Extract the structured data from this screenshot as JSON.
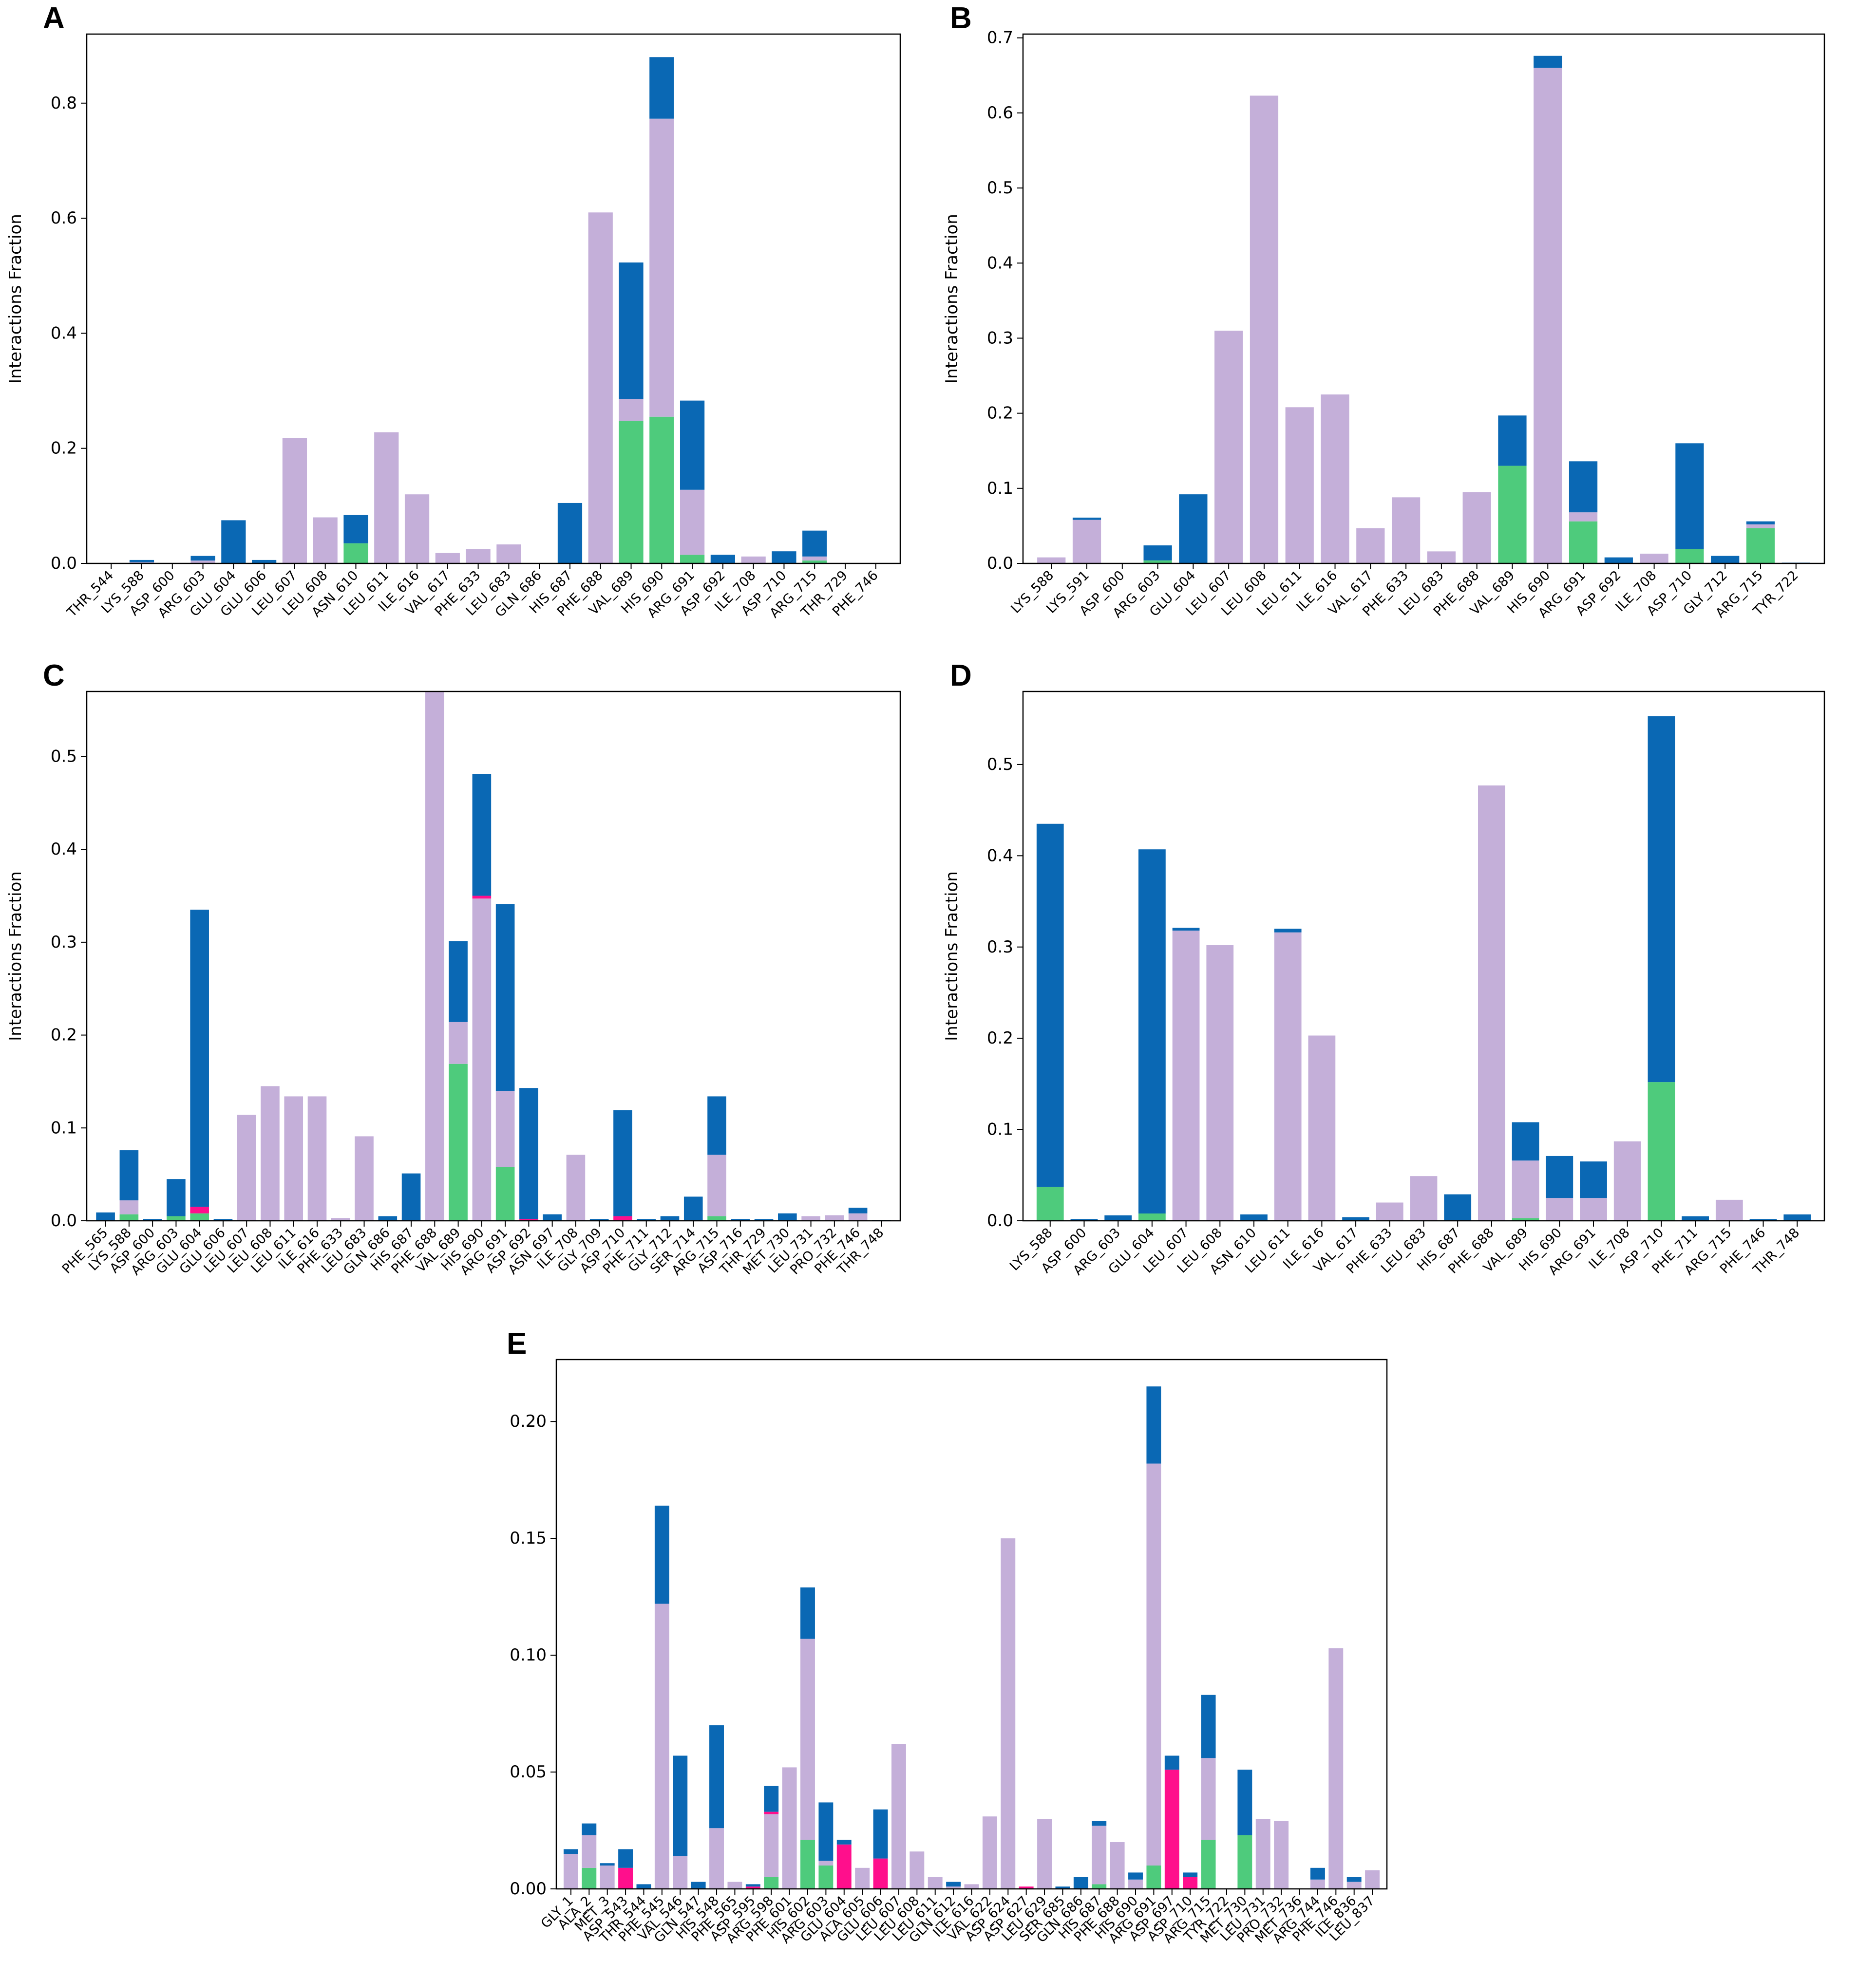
{
  "figure": {
    "series_colors": {
      "hbond": "#4ecb7c",
      "hydrophobic": "#c4afd9",
      "ionic": "#ff0f8c",
      "water_bridge": "#0a68b4"
    },
    "stack_order": [
      "hbond",
      "hydrophobic",
      "ionic",
      "water_bridge"
    ]
  },
  "chart_data": [
    {
      "panel": "A",
      "type": "bar",
      "stacked": true,
      "ylabel": "Interactions Fraction",
      "xlabel": "",
      "ylim": [
        0,
        0.92
      ],
      "yticks": [
        0.0,
        0.2,
        0.4,
        0.6,
        0.8
      ],
      "ytick_labels": [
        "0.0",
        "0.2",
        "0.4",
        "0.6",
        "0.8"
      ],
      "categories": [
        "THR_544",
        "LYS_588",
        "ASP_600",
        "ARG_603",
        "GLU_604",
        "GLU_606",
        "LEU_607",
        "LEU_608",
        "ASN_610",
        "LEU_611",
        "ILE_616",
        "VAL_617",
        "PHE_633",
        "LEU_683",
        "GLN_686",
        "HIS_687",
        "PHE_688",
        "VAL_689",
        "HIS_690",
        "ARG_691",
        "ASP_692",
        "ILE_708",
        "ASP_710",
        "ARG_715",
        "THR_729",
        "PHE_746"
      ],
      "series": [
        {
          "key": "hbond",
          "values": [
            0,
            0,
            0,
            0,
            0,
            0,
            0,
            0,
            0.035,
            0,
            0,
            0,
            0,
            0,
            0,
            0,
            0,
            0.248,
            0.255,
            0.015,
            0,
            0,
            0,
            0.005,
            0,
            0
          ]
        },
        {
          "key": "hydrophobic",
          "values": [
            0,
            0.002,
            0,
            0.005,
            0,
            0,
            0.218,
            0.08,
            0,
            0.228,
            0.12,
            0.018,
            0.025,
            0.033,
            0,
            0,
            0.61,
            0.038,
            0.518,
            0.113,
            0,
            0.012,
            0,
            0.007,
            0,
            0
          ]
        },
        {
          "key": "ionic",
          "values": [
            0,
            0,
            0,
            0,
            0,
            0,
            0,
            0,
            0,
            0,
            0,
            0,
            0,
            0,
            0,
            0,
            0,
            0,
            0,
            0,
            0,
            0,
            0,
            0,
            0,
            0
          ]
        },
        {
          "key": "water_bridge",
          "values": [
            0,
            0.004,
            0,
            0.008,
            0.075,
            0.006,
            0,
            0,
            0.049,
            0,
            0,
            0,
            0,
            0,
            0,
            0.105,
            0,
            0.237,
            0.107,
            0.155,
            0.015,
            0,
            0.021,
            0.045,
            0,
            0
          ]
        }
      ]
    },
    {
      "panel": "B",
      "type": "bar",
      "stacked": true,
      "ylabel": "Interactions Fraction",
      "xlabel": "",
      "ylim": [
        0,
        0.705
      ],
      "yticks": [
        0.0,
        0.1,
        0.2,
        0.3,
        0.4,
        0.5,
        0.6,
        0.7
      ],
      "ytick_labels": [
        "0.0",
        "0.1",
        "0.2",
        "0.3",
        "0.4",
        "0.5",
        "0.6",
        "0.7"
      ],
      "categories": [
        "LYS_588",
        "LYS_591",
        "ASP_600",
        "ARG_603",
        "GLU_604",
        "LEU_607",
        "LEU_608",
        "LEU_611",
        "ILE_616",
        "VAL_617",
        "PHE_633",
        "LEU_683",
        "PHE_688",
        "VAL_689",
        "HIS_690",
        "ARG_691",
        "ASP_692",
        "ILE_708",
        "ASP_710",
        "GLY_712",
        "ARG_715",
        "TYR_722"
      ],
      "series": [
        {
          "key": "hbond",
          "values": [
            0,
            0,
            0,
            0.004,
            0,
            0,
            0,
            0,
            0,
            0,
            0,
            0,
            0,
            0.13,
            0,
            0.056,
            0,
            0,
            0.019,
            0,
            0.047,
            0
          ]
        },
        {
          "key": "hydrophobic",
          "values": [
            0.008,
            0.058,
            0,
            0,
            0,
            0.31,
            0.623,
            0.208,
            0.225,
            0.047,
            0.088,
            0.016,
            0.095,
            0,
            0.66,
            0.012,
            0,
            0.013,
            0,
            0,
            0.005,
            0
          ]
        },
        {
          "key": "ionic",
          "values": [
            0,
            0,
            0,
            0,
            0,
            0,
            0,
            0,
            0,
            0,
            0,
            0,
            0,
            0,
            0,
            0,
            0,
            0,
            0,
            0,
            0,
            0
          ]
        },
        {
          "key": "water_bridge",
          "values": [
            0,
            0.003,
            0,
            0.02,
            0.092,
            0,
            0,
            0,
            0,
            0,
            0,
            0,
            0,
            0.067,
            0.016,
            0.068,
            0.008,
            0,
            0.141,
            0.01,
            0.004,
            0.001
          ]
        }
      ]
    },
    {
      "panel": "C",
      "type": "bar",
      "stacked": true,
      "ylabel": "Interactions Fraction",
      "xlabel": "",
      "ylim": [
        0,
        0.57
      ],
      "yticks": [
        0.0,
        0.1,
        0.2,
        0.3,
        0.4,
        0.5
      ],
      "ytick_labels": [
        "0.0",
        "0.1",
        "0.2",
        "0.3",
        "0.4",
        "0.5"
      ],
      "categories": [
        "PHE_565",
        "LYS_588",
        "ASP_600",
        "ARG_603",
        "GLU_604",
        "GLU_606",
        "LEU_607",
        "LEU_608",
        "LEU_611",
        "ILE_616",
        "PHE_633",
        "LEU_683",
        "GLN_686",
        "HIS_687",
        "PHE_688",
        "VAL_689",
        "HIS_690",
        "ARG_691",
        "ASP_692",
        "ASN_697",
        "ILE_708",
        "GLY_709",
        "ASP_710",
        "PHE_711",
        "GLY_712",
        "SER_714",
        "ARG_715",
        "ASP_716",
        "THR_729",
        "MET_730",
        "LEU_731",
        "PRO_732",
        "PHE_746",
        "THR_748"
      ],
      "series": [
        {
          "key": "hbond",
          "values": [
            0,
            0.007,
            0,
            0.005,
            0.008,
            0,
            0,
            0,
            0,
            0,
            0,
            0,
            0,
            0,
            0,
            0.169,
            0,
            0.058,
            0,
            0,
            0,
            0,
            0,
            0,
            0,
            0,
            0.005,
            0,
            0,
            0,
            0,
            0,
            0,
            0
          ]
        },
        {
          "key": "hydrophobic",
          "values": [
            0,
            0.015,
            0,
            0,
            0,
            0,
            0.114,
            0.145,
            0.134,
            0.134,
            0.003,
            0.091,
            0,
            0,
            0.57,
            0.045,
            0.347,
            0.082,
            0,
            0,
            0.071,
            0,
            0,
            0,
            0,
            0,
            0.066,
            0,
            0,
            0,
            0.005,
            0.006,
            0.008,
            0
          ]
        },
        {
          "key": "ionic",
          "values": [
            0,
            0,
            0,
            0,
            0.007,
            0,
            0,
            0,
            0,
            0,
            0,
            0,
            0,
            0,
            0,
            0,
            0.003,
            0,
            0.002,
            0,
            0,
            0,
            0.005,
            0,
            0,
            0,
            0,
            0,
            0,
            0,
            0,
            0,
            0,
            0
          ]
        },
        {
          "key": "water_bridge",
          "values": [
            0.009,
            0.054,
            0.002,
            0.04,
            0.32,
            0.002,
            0,
            0,
            0,
            0,
            0,
            0,
            0.005,
            0.051,
            0,
            0.087,
            0.131,
            0.201,
            0.141,
            0.007,
            0,
            0.002,
            0.114,
            0.002,
            0.005,
            0.026,
            0.063,
            0.002,
            0.002,
            0.008,
            0,
            0,
            0.006,
            0.001
          ]
        }
      ]
    },
    {
      "panel": "D",
      "type": "bar",
      "stacked": true,
      "ylabel": "Interactions Fraction",
      "xlabel": "",
      "ylim": [
        0,
        0.58
      ],
      "yticks": [
        0.0,
        0.1,
        0.2,
        0.3,
        0.4,
        0.5
      ],
      "ytick_labels": [
        "0.0",
        "0.1",
        "0.2",
        "0.3",
        "0.4",
        "0.5"
      ],
      "categories": [
        "LYS_588",
        "ASP_600",
        "ARG_603",
        "GLU_604",
        "LEU_607",
        "LEU_608",
        "ASN_610",
        "LEU_611",
        "ILE_616",
        "VAL_617",
        "PHE_633",
        "LEU_683",
        "HIS_687",
        "PHE_688",
        "VAL_689",
        "HIS_690",
        "ARG_691",
        "ILE_708",
        "ASP_710",
        "PHE_711",
        "ARG_715",
        "PHE_746",
        "THR_748"
      ],
      "series": [
        {
          "key": "hbond",
          "values": [
            0.037,
            0,
            0,
            0.008,
            0,
            0,
            0,
            0,
            0,
            0,
            0,
            0,
            0,
            0,
            0.003,
            0,
            0,
            0,
            0.152,
            0,
            0,
            0,
            0
          ]
        },
        {
          "key": "hydrophobic",
          "values": [
            0,
            0,
            0,
            0,
            0.318,
            0.302,
            0,
            0.316,
            0.203,
            0,
            0.02,
            0.049,
            0,
            0.477,
            0.063,
            0.025,
            0.025,
            0.087,
            0,
            0,
            0.023,
            0,
            0
          ]
        },
        {
          "key": "ionic",
          "values": [
            0,
            0,
            0,
            0,
            0,
            0,
            0,
            0,
            0,
            0,
            0,
            0,
            0,
            0,
            0,
            0,
            0,
            0,
            0,
            0,
            0,
            0,
            0
          ]
        },
        {
          "key": "water_bridge",
          "values": [
            0.398,
            0.002,
            0.006,
            0.399,
            0.003,
            0,
            0.007,
            0.004,
            0,
            0.004,
            0,
            0,
            0.029,
            0,
            0.042,
            0.046,
            0.04,
            0,
            0.401,
            0.005,
            0,
            0.002,
            0.007
          ]
        }
      ]
    },
    {
      "panel": "E",
      "type": "bar",
      "stacked": true,
      "ylabel": "",
      "xlabel": "",
      "ylim": [
        0,
        0.2265
      ],
      "yticks": [
        0.0,
        0.05,
        0.1,
        0.15,
        0.2
      ],
      "ytick_labels": [
        "0.00",
        "0.05",
        "0.10",
        "0.15",
        "0.20"
      ],
      "categories": [
        "GLY_1",
        "ALA_2",
        "MET_3",
        "ASP_543",
        "THR_544",
        "PHE_545",
        "VAL_546",
        "GLN_547",
        "HIS_548",
        "PHE_565",
        "ASP_595",
        "ARG_598",
        "PHE_601",
        "HIS_602",
        "ARG_603",
        "GLU_604",
        "ALA_605",
        "GLU_606",
        "LEU_607",
        "LEU_608",
        "LEU_611",
        "GLN_612",
        "ILE_616",
        "VAL_622",
        "ASP_624",
        "ASP_627",
        "LEU_629",
        "SER_685",
        "GLN_686",
        "HIS_687",
        "PHE_688",
        "HIS_690",
        "ARG_691",
        "ASP_697",
        "ASP_710",
        "ARG_715",
        "TYR_722",
        "MET_730",
        "LEU_731",
        "PRO_732",
        "MET_736",
        "ARG_744",
        "PHE_746",
        "ILE_836",
        "LEU_837"
      ],
      "series": [
        {
          "key": "hbond",
          "values": [
            0,
            0.009,
            0,
            0,
            0,
            0,
            0,
            0,
            0,
            0,
            0,
            0.005,
            0,
            0.021,
            0.01,
            0,
            0,
            0,
            0,
            0,
            0,
            0,
            0,
            0,
            0,
            0,
            0,
            0,
            0,
            0.002,
            0,
            0,
            0.01,
            0,
            0,
            0.021,
            0,
            0.023,
            0,
            0,
            0,
            0,
            0,
            0,
            0
          ]
        },
        {
          "key": "hydrophobic",
          "values": [
            0.015,
            0.014,
            0.01,
            0,
            0,
            0.122,
            0.014,
            0,
            0.026,
            0.003,
            0,
            0.027,
            0.052,
            0.086,
            0.002,
            0,
            0.009,
            0,
            0.062,
            0.016,
            0.005,
            0.001,
            0.002,
            0.031,
            0.15,
            0,
            0.03,
            0,
            0,
            0.025,
            0.02,
            0.004,
            0.172,
            0,
            0,
            0.035,
            0,
            0,
            0.03,
            0.029,
            0,
            0.004,
            0.103,
            0.003,
            0.008
          ]
        },
        {
          "key": "ionic",
          "values": [
            0,
            0,
            0,
            0.009,
            0,
            0,
            0,
            0,
            0,
            0,
            0.001,
            0.001,
            0,
            0,
            0,
            0.019,
            0,
            0.013,
            0,
            0,
            0,
            0,
            0,
            0,
            0,
            0.001,
            0,
            0,
            0,
            0,
            0,
            0,
            0,
            0.051,
            0.005,
            0,
            0,
            0,
            0,
            0,
            0,
            0,
            0,
            0,
            0
          ]
        },
        {
          "key": "water_bridge",
          "values": [
            0.002,
            0.005,
            0.001,
            0.008,
            0.002,
            0.042,
            0.043,
            0.003,
            0.044,
            0,
            0.001,
            0.011,
            0,
            0.022,
            0.025,
            0.002,
            0,
            0.021,
            0,
            0,
            0,
            0.002,
            0,
            0,
            0,
            0,
            0,
            0.001,
            0.005,
            0.002,
            0,
            0.003,
            0.033,
            0.006,
            0.002,
            0.027,
            0,
            0.028,
            0,
            0,
            0,
            0.005,
            0,
            0.002,
            0
          ]
        }
      ]
    }
  ]
}
